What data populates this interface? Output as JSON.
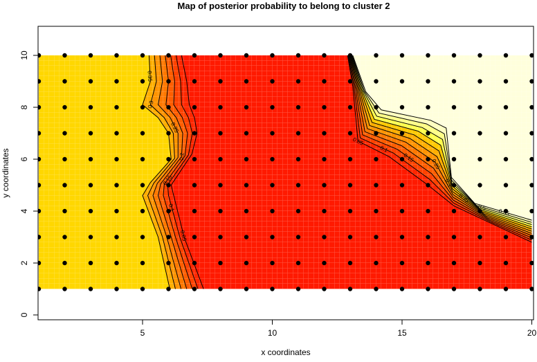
{
  "chart_data": {
    "type": "heatmap",
    "title": "Map of posterior probability to belong to cluster  2",
    "xlabel": "x coordinates",
    "ylabel": "y coordinates",
    "xlim": [
      1,
      20
    ],
    "ylim": [
      0,
      11
    ],
    "xticks": [
      5,
      10,
      15,
      20
    ],
    "yticks": [
      0,
      2,
      4,
      6,
      8,
      10
    ],
    "points": {
      "x": [
        1,
        2,
        3,
        4,
        5,
        6,
        7,
        8,
        9,
        10,
        11,
        12,
        13,
        14,
        15,
        16,
        17,
        18,
        19,
        20
      ],
      "y": [
        1,
        2,
        3,
        4,
        5,
        6,
        7,
        8,
        9,
        10
      ]
    },
    "colors": {
      "low": "#ff1a00",
      "mid": "#ffa000",
      "gold": "#ffd700",
      "high": "#ffffdc",
      "point": "#000000"
    },
    "left_contours": {
      "levels": [
        0.35,
        0.3,
        0.25,
        0.2,
        0.15,
        0.1,
        0.05
      ],
      "labels_shown": [
        0.35,
        0.3,
        0.25,
        0.2,
        0.15,
        0.1,
        0.05
      ],
      "outer": [
        [
          5.25,
          10
        ],
        [
          5.3,
          9
        ],
        [
          5.0,
          8.1
        ],
        [
          5.6,
          7.6
        ],
        [
          6.0,
          7.0
        ],
        [
          6.1,
          6.0
        ],
        [
          5.3,
          5.1
        ],
        [
          5.0,
          4.6
        ],
        [
          5.6,
          3.0
        ],
        [
          6.05,
          1
        ]
      ],
      "inner": [
        [
          6.5,
          10
        ],
        [
          6.7,
          9
        ],
        [
          6.8,
          8.1
        ],
        [
          7.0,
          7.6
        ],
        [
          7.1,
          7.0
        ],
        [
          6.9,
          6.2
        ],
        [
          6.1,
          5.0
        ],
        [
          6.2,
          4.6
        ],
        [
          6.6,
          3.0
        ],
        [
          7.35,
          1
        ]
      ]
    },
    "right_contours": {
      "levels": [
        0.05,
        0.1,
        0.15,
        0.2,
        0.25,
        0.3,
        0.35,
        0.4,
        0.45,
        0.5,
        0.55
      ],
      "labels_shown": [
        0.05,
        0.1,
        0.15,
        0.25,
        0.3,
        0.35,
        0.5,
        0.55
      ],
      "lower": [
        [
          12.9,
          10
        ],
        [
          13.1,
          8.8
        ],
        [
          13.3,
          6.7
        ],
        [
          14.5,
          6.1
        ],
        [
          16,
          5.0
        ],
        [
          17,
          4.2
        ],
        [
          18.5,
          3.5
        ],
        [
          20,
          2.8
        ]
      ],
      "upper": [
        [
          13.1,
          10
        ],
        [
          13.6,
          8.6
        ],
        [
          14.2,
          7.9
        ],
        [
          16.1,
          7.5
        ],
        [
          16.7,
          7.2
        ],
        [
          16.9,
          5.3
        ],
        [
          17.8,
          4.3
        ],
        [
          20,
          3.65
        ]
      ]
    }
  }
}
